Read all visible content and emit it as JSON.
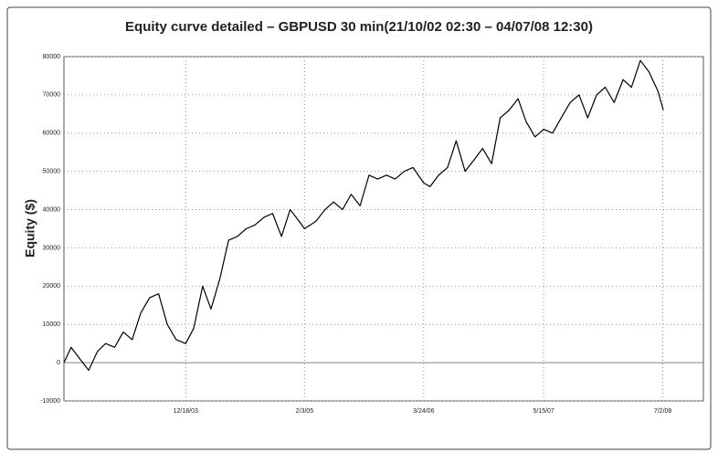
{
  "chart_data": {
    "type": "line",
    "title": "Equity curve detailed   – GBPUSD 30 min(21/10/02 02:30 – 04/07/08 12:30)",
    "y_label": "Equity ($)",
    "color": "#000000",
    "grid": true,
    "x": [
      "2002-10-21",
      "2002-11-15",
      "2002-12-15",
      "2003-01-15",
      "2003-02-15",
      "2003-03-15",
      "2003-04-15",
      "2003-05-15",
      "2003-06-15",
      "2003-07-15",
      "2003-08-15",
      "2003-09-15",
      "2003-10-15",
      "2003-11-15",
      "2003-12-18",
      "2004-01-15",
      "2004-02-15",
      "2004-03-15",
      "2004-04-15",
      "2004-05-15",
      "2004-06-15",
      "2004-07-15",
      "2004-08-15",
      "2004-09-15",
      "2004-10-15",
      "2004-11-15",
      "2004-12-15",
      "2005-01-15",
      "2005-02-03",
      "2005-03-15",
      "2005-04-15",
      "2005-05-15",
      "2005-06-15",
      "2005-07-15",
      "2005-08-15",
      "2005-09-15",
      "2005-10-15",
      "2005-11-15",
      "2005-12-15",
      "2006-01-15",
      "2006-02-15",
      "2006-03-24",
      "2006-04-15",
      "2006-05-15",
      "2006-06-15",
      "2006-07-15",
      "2006-08-15",
      "2006-09-15",
      "2006-10-15",
      "2006-11-15",
      "2006-12-15",
      "2007-01-15",
      "2007-02-15",
      "2007-03-15",
      "2007-04-15",
      "2007-05-15",
      "2007-06-15",
      "2007-07-15",
      "2007-08-15",
      "2007-09-15",
      "2007-10-15",
      "2007-11-15",
      "2007-12-15",
      "2008-01-15",
      "2008-02-15",
      "2008-03-15",
      "2008-04-15",
      "2008-05-15",
      "2008-06-15",
      "2008-07-04"
    ],
    "values": [
      0,
      4000,
      1000,
      -2000,
      3000,
      5000,
      4000,
      8000,
      6000,
      13000,
      17000,
      18000,
      10000,
      6000,
      5000,
      9000,
      20000,
      14000,
      22000,
      32000,
      33000,
      35000,
      36000,
      38000,
      39000,
      33000,
      40000,
      37000,
      35000,
      37000,
      40000,
      42000,
      40000,
      44000,
      41000,
      49000,
      48000,
      49000,
      48000,
      50000,
      51000,
      47000,
      46000,
      49000,
      51000,
      58000,
      50000,
      53000,
      56000,
      52000,
      64000,
      66000,
      69000,
      63000,
      59000,
      61000,
      60000,
      64000,
      68000,
      70000,
      64000,
      70000,
      72000,
      68000,
      74000,
      72000,
      79000,
      76000,
      71000,
      66000
    ],
    "xlim": [
      "2002-10-21",
      "2008-11-20"
    ],
    "xticks": [
      {
        "value": "2003-12-18",
        "label": "12/18/03"
      },
      {
        "value": "2005-02-03",
        "label": "2/3/05"
      },
      {
        "value": "2006-03-24",
        "label": "3/24/06"
      },
      {
        "value": "2007-05-15",
        "label": "5/15/07"
      },
      {
        "value": "2008-07-02",
        "label": "7/2/08"
      }
    ],
    "ylim": [
      -10000,
      80000
    ],
    "yticks": [
      -10000,
      0,
      10000,
      20000,
      30000,
      40000,
      50000,
      60000,
      70000,
      80000
    ]
  }
}
